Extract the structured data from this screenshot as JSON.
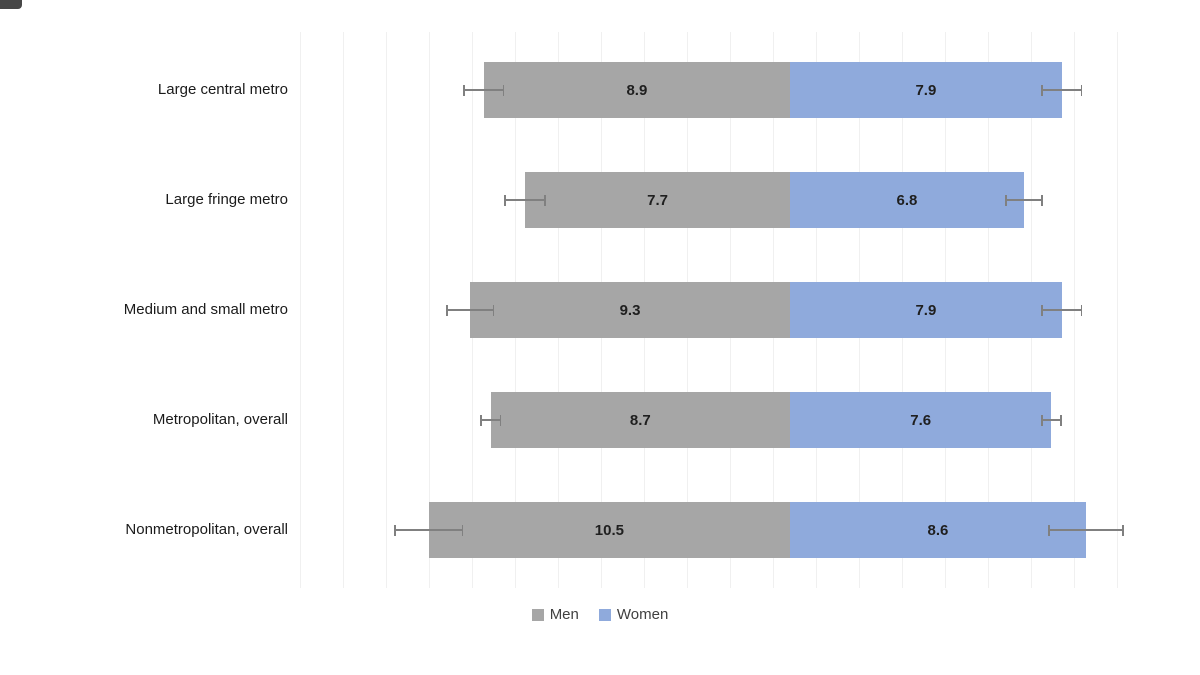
{
  "chart_data": {
    "type": "bar",
    "variant": "diverging-horizontal",
    "title": "",
    "xlabel": "",
    "ylabel": "",
    "grid": true,
    "error_bars": true,
    "legend_position": "bottom",
    "categories": [
      "Large central metro",
      "Large fringe metro",
      "Medium and small metro",
      "Metropolitan, overall",
      "Nonmetropolitan, overall"
    ],
    "series": [
      {
        "name": "Men",
        "direction": "left",
        "color": "#a6a6a6",
        "values": [
          8.9,
          7.7,
          9.3,
          8.7,
          10.5
        ],
        "errors": [
          0.6,
          0.6,
          0.7,
          0.3,
          1.0
        ]
      },
      {
        "name": "Women",
        "direction": "right",
        "color": "#8faadc",
        "values": [
          7.9,
          6.8,
          7.9,
          7.6,
          8.6
        ],
        "errors": [
          0.6,
          0.55,
          0.6,
          0.3,
          1.1
        ]
      }
    ],
    "value_labels": {
      "men": [
        "8.9",
        "7.7",
        "9.3",
        "8.7",
        "10.5"
      ],
      "women": [
        "7.9",
        "6.8",
        "7.9",
        "7.6",
        "8.6"
      ]
    }
  },
  "legend": {
    "men_label": "Men",
    "women_label": "Women"
  },
  "colors": {
    "men_bar": "#a6a6a6",
    "women_bar": "#8faadc",
    "error_bar": "#808080",
    "gridline": "#f0f0f0",
    "value_text": "#1f1f1f",
    "category_text": "#1a1a1a",
    "legend_text": "#404040",
    "background": "#ffffff"
  }
}
